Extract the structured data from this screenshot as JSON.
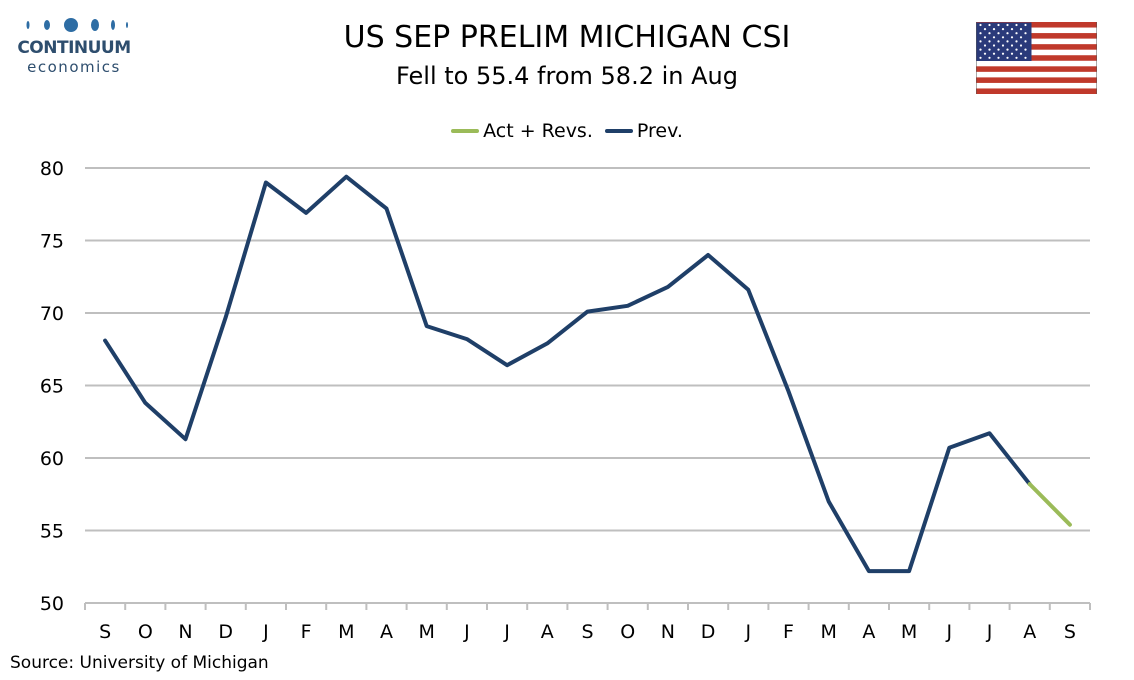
{
  "brand": {
    "word1": "CONTINUUM",
    "word2": "economics",
    "color": "#2e4e6e"
  },
  "flag": {
    "icon": "us-flag-icon"
  },
  "chart_data": {
    "type": "line",
    "title": "US SEP PRELIM MICHIGAN CSI",
    "subtitle": "Fell to 55.4 from 58.2 in Aug",
    "categories": [
      "S",
      "O",
      "N",
      "D",
      "J",
      "F",
      "M",
      "A",
      "M",
      "J",
      "J",
      "A",
      "S",
      "O",
      "N",
      "D",
      "J",
      "F",
      "M",
      "A",
      "M",
      "J",
      "J",
      "A",
      "S"
    ],
    "series": [
      {
        "name": "Act + Revs.",
        "color": "#9bbb59",
        "values": [
          null,
          null,
          null,
          null,
          null,
          null,
          null,
          null,
          null,
          null,
          null,
          null,
          null,
          null,
          null,
          null,
          null,
          null,
          null,
          null,
          null,
          null,
          null,
          58.2,
          55.4
        ]
      },
      {
        "name": "Prev.",
        "color": "#1f3f68",
        "values": [
          68.1,
          63.8,
          61.3,
          69.7,
          79.0,
          76.9,
          79.4,
          77.2,
          69.1,
          68.2,
          66.4,
          67.9,
          70.1,
          70.5,
          71.8,
          74.0,
          71.6,
          64.6,
          57.0,
          52.2,
          52.2,
          60.7,
          61.7,
          58.2,
          null
        ]
      }
    ],
    "ylim": [
      50,
      80
    ],
    "yticks": [
      50,
      55,
      60,
      65,
      70,
      75,
      80
    ],
    "grid": true,
    "legend": "top-center",
    "xlabel": "",
    "ylabel": ""
  },
  "source": "Source: University of Michigan"
}
